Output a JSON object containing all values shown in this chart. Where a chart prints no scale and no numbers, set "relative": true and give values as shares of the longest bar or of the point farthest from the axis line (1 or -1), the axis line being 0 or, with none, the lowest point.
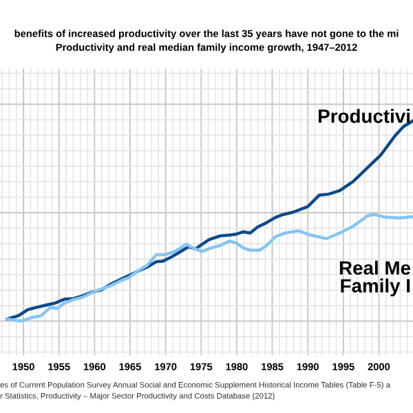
{
  "chart_data": {
    "type": "line",
    "title": "benefits of increased productivity over the last 35 years have not gone to the mi",
    "subtitle": "Productivity and real median family income growth, 1947–2012",
    "relative": true,
    "grid": true,
    "xlim": [
      1946.7,
      2004.8
    ],
    "xticks": [
      1950,
      1955,
      1960,
      1965,
      1970,
      1975,
      1980,
      1985,
      1990,
      1995,
      2000
    ],
    "series": [
      {
        "name": "Productivi",
        "color": "#0d4a8a",
        "x": [
          1947.7,
          1949.3,
          1950.6,
          1951.9,
          1953.2,
          1954.5,
          1955.8,
          1957.0,
          1958.3,
          1959.6,
          1960.9,
          1962.2,
          1963.5,
          1964.8,
          1966.1,
          1967.4,
          1968.7,
          1969.6,
          1970.6,
          1971.9,
          1973.2,
          1974.2,
          1976.1,
          1977.7,
          1979.0,
          1980.0,
          1980.9,
          1981.9,
          1982.9,
          1984.2,
          1985.5,
          1986.4,
          1988.0,
          1990.0,
          1991.6,
          1992.9,
          1994.5,
          1996.4,
          1998.4,
          2000.3,
          2002.3,
          2003.5,
          2004.8
        ],
        "values": [
          0.011,
          0.027,
          0.057,
          0.069,
          0.08,
          0.091,
          0.11,
          0.112,
          0.126,
          0.144,
          0.155,
          0.183,
          0.206,
          0.227,
          0.249,
          0.27,
          0.297,
          0.299,
          0.316,
          0.343,
          0.371,
          0.361,
          0.407,
          0.426,
          0.43,
          0.435,
          0.446,
          0.44,
          0.469,
          0.492,
          0.519,
          0.531,
          0.545,
          0.572,
          0.629,
          0.634,
          0.652,
          0.698,
          0.766,
          0.831,
          0.927,
          0.973,
          1.0
        ]
      },
      {
        "name": "Real Me\nFamily I",
        "color": "#86c4f5",
        "x": [
          1947.7,
          1949.6,
          1951.2,
          1952.5,
          1953.8,
          1954.8,
          1955.8,
          1957.0,
          1958.3,
          1959.6,
          1960.9,
          1962.2,
          1963.5,
          1964.8,
          1966.1,
          1967.4,
          1968.7,
          1970.0,
          1971.3,
          1972.9,
          1973.8,
          1975.1,
          1976.4,
          1977.7,
          1979.0,
          1980.0,
          1980.9,
          1981.9,
          1983.2,
          1984.2,
          1985.5,
          1986.8,
          1988.7,
          1990.6,
          1992.6,
          1994.5,
          1996.4,
          1998.4,
          1999.3,
          2000.9,
          2002.9,
          2004.8
        ],
        "values": [
          0.011,
          0.0,
          0.018,
          0.027,
          0.069,
          0.064,
          0.091,
          0.107,
          0.119,
          0.141,
          0.16,
          0.176,
          0.199,
          0.217,
          0.251,
          0.279,
          0.332,
          0.332,
          0.348,
          0.385,
          0.366,
          0.348,
          0.366,
          0.378,
          0.4,
          0.389,
          0.366,
          0.354,
          0.354,
          0.378,
          0.423,
          0.44,
          0.451,
          0.428,
          0.412,
          0.44,
          0.474,
          0.526,
          0.533,
          0.519,
          0.515,
          0.522
        ]
      }
    ],
    "annotations": [
      "es of Current Population Survey Annual Social and Economic Supplement Historical Income Tables (Table F-5) a",
      "r Statistics, Productivity – Major Sector Productivity and Costs Database (2012)"
    ]
  }
}
